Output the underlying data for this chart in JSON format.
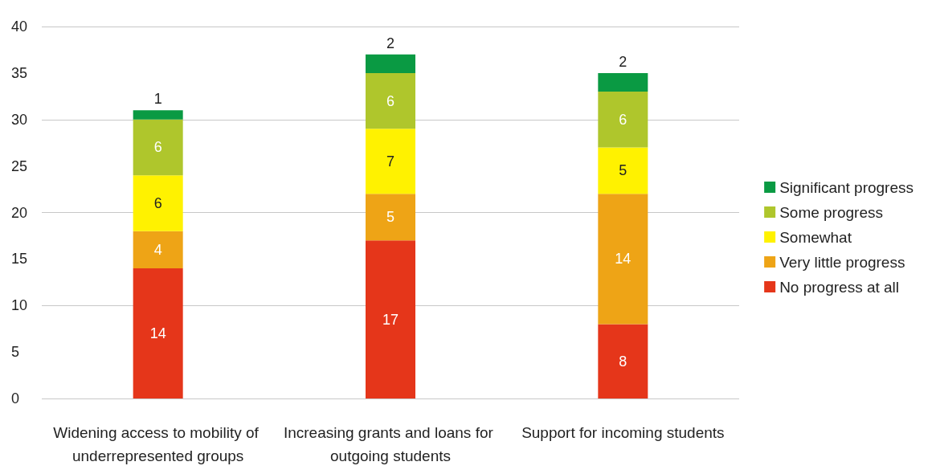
{
  "chart_data": {
    "type": "bar",
    "stacked": true,
    "categories": [
      "Widening access to mobility of underrepresented groups",
      "Increasing grants and loans for outgoing students",
      "Support for incoming students"
    ],
    "series": [
      {
        "name": "No progress at all",
        "color": "#e5361a",
        "values": [
          14,
          17,
          8
        ]
      },
      {
        "name": "Very little progress",
        "color": "#eea416",
        "values": [
          4,
          5,
          14
        ]
      },
      {
        "name": "Somewhat",
        "color": "#fff200",
        "values": [
          6,
          7,
          5
        ]
      },
      {
        "name": "Some progress",
        "color": "#afc62c",
        "values": [
          6,
          6,
          6
        ]
      },
      {
        "name": "Significant progress",
        "color": "#0a9a43",
        "values": [
          1,
          2,
          2
        ]
      }
    ],
    "ylim": [
      0,
      40
    ],
    "yticks": [
      0,
      5,
      10,
      15,
      20,
      25,
      30,
      35,
      40
    ],
    "grid": "y",
    "legend": "right",
    "data_labels": true
  }
}
